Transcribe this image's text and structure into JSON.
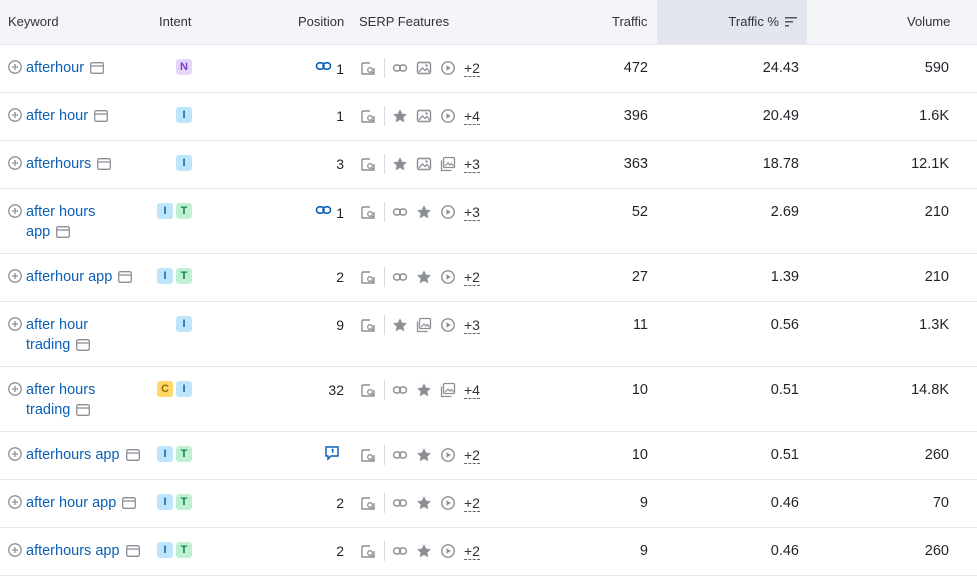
{
  "headers": {
    "keyword": "Keyword",
    "intent": "Intent",
    "position": "Position",
    "serp": "SERP Features",
    "traffic": "Traffic",
    "traffic_pct": "Traffic %",
    "volume": "Volume"
  },
  "colors": {
    "link": "#0a5fb4",
    "header_bg": "#f4f5f9",
    "sorted_bg": "#e3e5ef"
  },
  "rows": [
    {
      "kw1": "afterhour",
      "kw2": "",
      "intents": [
        "N"
      ],
      "pos_icon": "link",
      "position": "1",
      "features": [
        "link-icon",
        "image-icon",
        "video-icon"
      ],
      "more": "+2",
      "traffic": "472",
      "traffic_pct": "24.43",
      "volume": "590"
    },
    {
      "kw1": "after hour",
      "kw2": "",
      "intents": [
        "I"
      ],
      "pos_icon": "",
      "position": "1",
      "features": [
        "star-icon",
        "image-icon",
        "video-icon"
      ],
      "more": "+4",
      "traffic": "396",
      "traffic_pct": "20.49",
      "volume": "1.6K"
    },
    {
      "kw1": "afterhours",
      "kw2": "",
      "intents": [
        "I"
      ],
      "pos_icon": "",
      "position": "3",
      "features": [
        "star-icon",
        "image-icon",
        "gallery-icon"
      ],
      "more": "+3",
      "traffic": "363",
      "traffic_pct": "18.78",
      "volume": "12.1K"
    },
    {
      "kw1": "after hours",
      "kw2": "app",
      "intents": [
        "I",
        "T"
      ],
      "pos_icon": "link",
      "position": "1",
      "features": [
        "link-icon",
        "star-icon",
        "video-icon"
      ],
      "more": "+3",
      "traffic": "52",
      "traffic_pct": "2.69",
      "volume": "210"
    },
    {
      "kw1": "afterhour app",
      "kw2": "",
      "intents": [
        "I",
        "T"
      ],
      "pos_icon": "",
      "position": "2",
      "features": [
        "link-icon",
        "star-icon",
        "video-icon"
      ],
      "more": "+2",
      "traffic": "27",
      "traffic_pct": "1.39",
      "volume": "210"
    },
    {
      "kw1": "after hour",
      "kw2": "trading",
      "intents": [
        "I"
      ],
      "pos_icon": "",
      "position": "9",
      "features": [
        "star-icon",
        "gallery-icon",
        "video-icon"
      ],
      "more": "+3",
      "traffic": "11",
      "traffic_pct": "0.56",
      "volume": "1.3K"
    },
    {
      "kw1": "after hours",
      "kw2": "trading",
      "intents": [
        "C",
        "I"
      ],
      "pos_icon": "",
      "position": "32",
      "features": [
        "link-icon",
        "star-icon",
        "gallery-icon"
      ],
      "more": "+4",
      "traffic": "10",
      "traffic_pct": "0.51",
      "volume": "14.8K"
    },
    {
      "kw1": "afterhours app",
      "kw2": "",
      "intents": [
        "I",
        "T"
      ],
      "pos_icon": "chat",
      "position": "",
      "features": [
        "link-icon",
        "star-icon",
        "video-icon"
      ],
      "more": "+2",
      "traffic": "10",
      "traffic_pct": "0.51",
      "volume": "260"
    },
    {
      "kw1": "after hour app",
      "kw2": "",
      "intents": [
        "I",
        "T"
      ],
      "pos_icon": "",
      "position": "2",
      "features": [
        "link-icon",
        "star-icon",
        "video-icon"
      ],
      "more": "+2",
      "traffic": "9",
      "traffic_pct": "0.46",
      "volume": "70"
    },
    {
      "kw1": "afterhours app",
      "kw2": "",
      "intents": [
        "I",
        "T"
      ],
      "pos_icon": "",
      "position": "2",
      "features": [
        "link-icon",
        "star-icon",
        "video-icon"
      ],
      "more": "+2",
      "traffic": "9",
      "traffic_pct": "0.46",
      "volume": "260"
    }
  ]
}
